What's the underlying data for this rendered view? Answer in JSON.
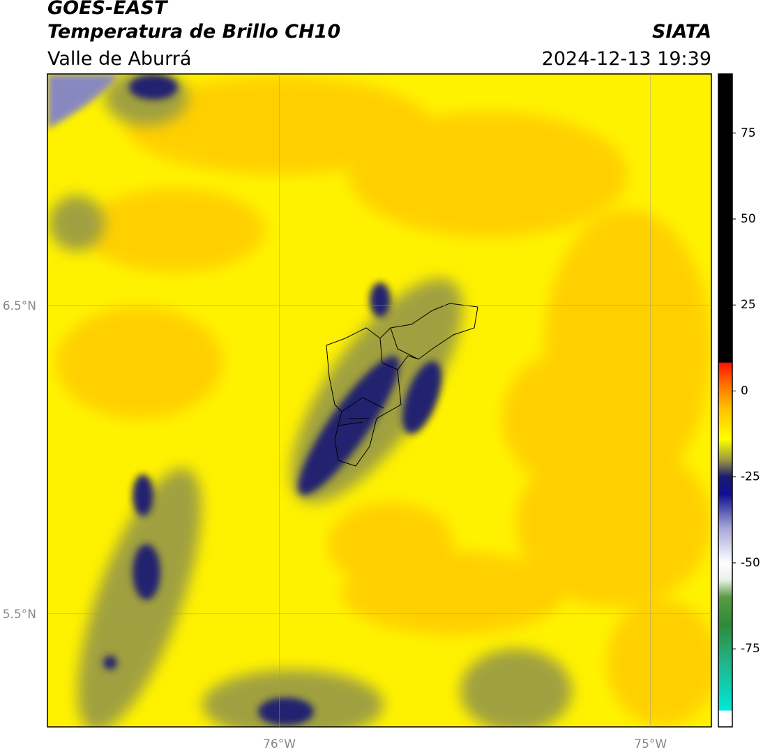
{
  "header": {
    "title": "GOES-EAST",
    "subtitle": "Temperatura de Brillo CH10",
    "region": "Valle de Aburrá",
    "source": "SIATA",
    "datetime": "2024-12-13 19:39"
  },
  "map": {
    "xlim": [
      -76.625,
      -74.836
    ],
    "ylim": [
      5.133,
      7.251
    ],
    "xticks": [
      {
        "value": -76,
        "label": "76°W"
      },
      {
        "value": -75,
        "label": "75°W"
      }
    ],
    "yticks": [
      {
        "value": 6.5,
        "label": "6.5°N"
      },
      {
        "value": 5.5,
        "label": "5.5°N"
      }
    ],
    "grid": true
  },
  "colorbar": {
    "clim": [
      -97.7,
      92.2
    ],
    "ticks": [
      75,
      50,
      25,
      0,
      -25,
      -50,
      -75
    ],
    "stops": [
      {
        "value": -97.7,
        "color": "#ffffff"
      },
      {
        "value": -93,
        "color": "#ffffff"
      },
      {
        "value": -92.9,
        "color": "#00e8d8"
      },
      {
        "value": -80,
        "color": "#20b890"
      },
      {
        "value": -68,
        "color": "#2e8a3a"
      },
      {
        "value": -60,
        "color": "#5a9a40"
      },
      {
        "value": -55,
        "color": "#e8f0e8"
      },
      {
        "value": -50,
        "color": "#ffffff"
      },
      {
        "value": -40,
        "color": "#a8a8d8"
      },
      {
        "value": -30,
        "color": "#101090"
      },
      {
        "value": -25,
        "color": "#1a1a70"
      },
      {
        "value": -20,
        "color": "#9a9a40"
      },
      {
        "value": -14,
        "color": "#ffff00"
      },
      {
        "value": -5,
        "color": "#ffc000"
      },
      {
        "value": 2,
        "color": "#ff7000"
      },
      {
        "value": 8.2,
        "color": "#ff1000"
      },
      {
        "value": 8.3,
        "color": "#000000"
      },
      {
        "value": 92.2,
        "color": "#000000"
      }
    ]
  }
}
